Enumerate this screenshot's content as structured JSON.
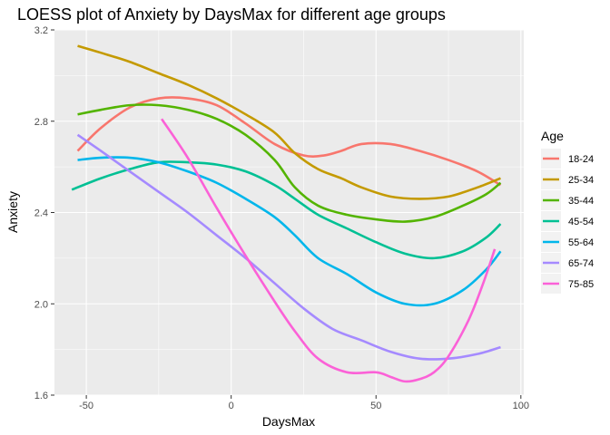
{
  "chart_data": {
    "type": "line",
    "title": "LOESS plot of Anxiety by DaysMax for different age groups",
    "xlabel": "DaysMax",
    "ylabel": "Anxiety",
    "xlim": [
      -61,
      101
    ],
    "ylim": [
      1.6,
      3.2
    ],
    "x_ticks": [
      -50,
      0,
      50,
      100
    ],
    "y_ticks": [
      1.6,
      2.0,
      2.4,
      2.8,
      3.2
    ],
    "x_tick_labels": [
      "-50",
      "0",
      "50",
      "100"
    ],
    "y_tick_labels": [
      "1.6",
      "2.0",
      "2.4",
      "2.8",
      "3.2"
    ],
    "grid": true,
    "legend": {
      "title": "Age",
      "position": "right"
    },
    "series": [
      {
        "name": "18-24",
        "color": "#F8766D",
        "points": [
          [
            -53,
            2.67
          ],
          [
            -45,
            2.77
          ],
          [
            -35,
            2.86
          ],
          [
            -25,
            2.9
          ],
          [
            -15,
            2.9
          ],
          [
            -5,
            2.87
          ],
          [
            5,
            2.79
          ],
          [
            15,
            2.7
          ],
          [
            25,
            2.65
          ],
          [
            32,
            2.65
          ],
          [
            38,
            2.67
          ],
          [
            45,
            2.7
          ],
          [
            55,
            2.7
          ],
          [
            65,
            2.67
          ],
          [
            75,
            2.63
          ],
          [
            85,
            2.58
          ],
          [
            93,
            2.52
          ]
        ]
      },
      {
        "name": "25-34",
        "color": "#C49A00",
        "points": [
          [
            -53,
            3.13
          ],
          [
            -45,
            3.1
          ],
          [
            -35,
            3.06
          ],
          [
            -25,
            3.01
          ],
          [
            -15,
            2.96
          ],
          [
            -5,
            2.9
          ],
          [
            5,
            2.83
          ],
          [
            15,
            2.75
          ],
          [
            22,
            2.66
          ],
          [
            30,
            2.59
          ],
          [
            38,
            2.55
          ],
          [
            45,
            2.51
          ],
          [
            55,
            2.47
          ],
          [
            65,
            2.46
          ],
          [
            75,
            2.47
          ],
          [
            85,
            2.51
          ],
          [
            93,
            2.55
          ]
        ]
      },
      {
        "name": "35-44",
        "color": "#53B400",
        "points": [
          [
            -53,
            2.83
          ],
          [
            -45,
            2.85
          ],
          [
            -35,
            2.87
          ],
          [
            -25,
            2.87
          ],
          [
            -15,
            2.85
          ],
          [
            -5,
            2.81
          ],
          [
            5,
            2.74
          ],
          [
            15,
            2.63
          ],
          [
            22,
            2.51
          ],
          [
            30,
            2.43
          ],
          [
            40,
            2.39
          ],
          [
            50,
            2.37
          ],
          [
            60,
            2.36
          ],
          [
            70,
            2.38
          ],
          [
            80,
            2.43
          ],
          [
            88,
            2.48
          ],
          [
            93,
            2.53
          ]
        ]
      },
      {
        "name": "45-54",
        "color": "#00C094",
        "points": [
          [
            -55,
            2.5
          ],
          [
            -45,
            2.55
          ],
          [
            -35,
            2.59
          ],
          [
            -25,
            2.62
          ],
          [
            -15,
            2.62
          ],
          [
            -5,
            2.61
          ],
          [
            5,
            2.58
          ],
          [
            15,
            2.52
          ],
          [
            22,
            2.46
          ],
          [
            30,
            2.39
          ],
          [
            40,
            2.33
          ],
          [
            50,
            2.27
          ],
          [
            60,
            2.22
          ],
          [
            70,
            2.2
          ],
          [
            80,
            2.23
          ],
          [
            88,
            2.29
          ],
          [
            93,
            2.35
          ]
        ]
      },
      {
        "name": "55-64",
        "color": "#00B6EB",
        "points": [
          [
            -53,
            2.63
          ],
          [
            -45,
            2.64
          ],
          [
            -35,
            2.64
          ],
          [
            -25,
            2.62
          ],
          [
            -15,
            2.58
          ],
          [
            -5,
            2.53
          ],
          [
            5,
            2.46
          ],
          [
            15,
            2.38
          ],
          [
            22,
            2.3
          ],
          [
            30,
            2.2
          ],
          [
            40,
            2.13
          ],
          [
            50,
            2.05
          ],
          [
            60,
            2.0
          ],
          [
            70,
            2.0
          ],
          [
            80,
            2.06
          ],
          [
            88,
            2.15
          ],
          [
            93,
            2.23
          ]
        ]
      },
      {
        "name": "65-74",
        "color": "#A58AFF",
        "points": [
          [
            -53,
            2.74
          ],
          [
            -45,
            2.67
          ],
          [
            -35,
            2.58
          ],
          [
            -25,
            2.49
          ],
          [
            -15,
            2.4
          ],
          [
            -5,
            2.3
          ],
          [
            5,
            2.2
          ],
          [
            15,
            2.09
          ],
          [
            25,
            1.98
          ],
          [
            35,
            1.89
          ],
          [
            45,
            1.84
          ],
          [
            55,
            1.79
          ],
          [
            65,
            1.76
          ],
          [
            75,
            1.76
          ],
          [
            85,
            1.78
          ],
          [
            93,
            1.81
          ]
        ]
      },
      {
        "name": "75-85",
        "color": "#FB61D7",
        "points": [
          [
            -24,
            2.81
          ],
          [
            -15,
            2.64
          ],
          [
            -5,
            2.42
          ],
          [
            5,
            2.21
          ],
          [
            15,
            2.01
          ],
          [
            22,
            1.88
          ],
          [
            30,
            1.76
          ],
          [
            40,
            1.7
          ],
          [
            50,
            1.7
          ],
          [
            55,
            1.68
          ],
          [
            60,
            1.66
          ],
          [
            65,
            1.67
          ],
          [
            70,
            1.7
          ],
          [
            75,
            1.77
          ],
          [
            82,
            1.93
          ],
          [
            87,
            2.09
          ],
          [
            91,
            2.24
          ]
        ]
      }
    ]
  }
}
